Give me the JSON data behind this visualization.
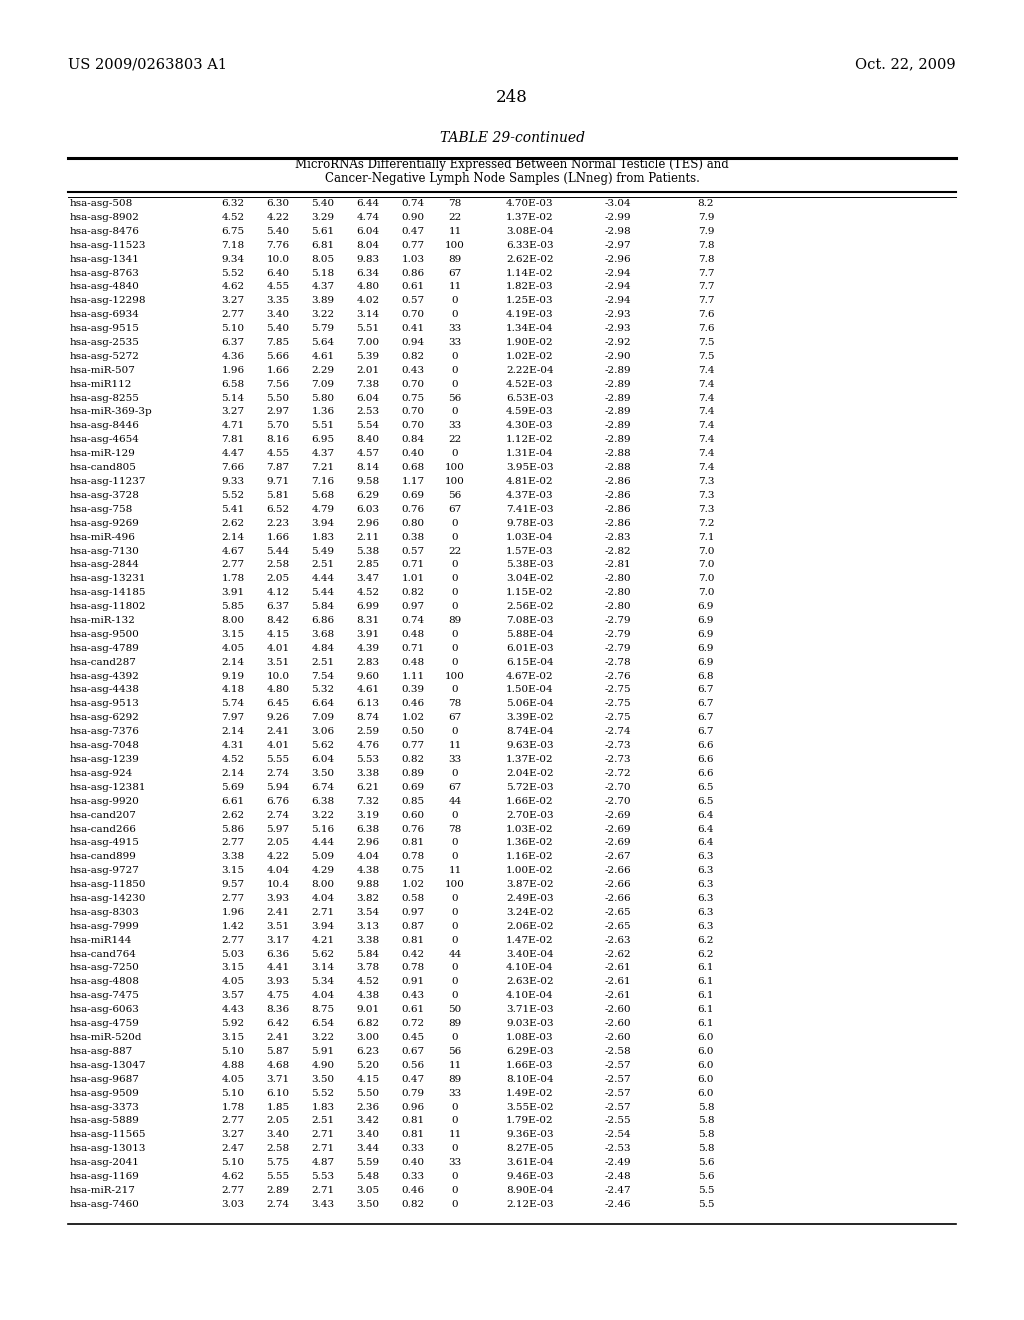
{
  "header_left": "US 2009/0263803 A1",
  "header_right": "Oct. 22, 2009",
  "page_number": "248",
  "table_title": "TABLE 29-continued",
  "table_subtitle1": "MicroRNAs Differentially Expressed Between Normal Testicle (TES) and",
  "table_subtitle2": "Cancer-Negative Lymph Node Samples (LNneg) from Patients.",
  "rows": [
    [
      "hsa-asg-508",
      "6.32",
      "6.30",
      "5.40",
      "6.44",
      "0.74",
      "78",
      "4.70E-03",
      "-3.04",
      "8.2"
    ],
    [
      "hsa-asg-8902",
      "4.52",
      "4.22",
      "3.29",
      "4.74",
      "0.90",
      "22",
      "1.37E-02",
      "-2.99",
      "7.9"
    ],
    [
      "hsa-asg-8476",
      "6.75",
      "5.40",
      "5.61",
      "6.04",
      "0.47",
      "11",
      "3.08E-04",
      "-2.98",
      "7.9"
    ],
    [
      "hsa-asg-11523",
      "7.18",
      "7.76",
      "6.81",
      "8.04",
      "0.77",
      "100",
      "6.33E-03",
      "-2.97",
      "7.8"
    ],
    [
      "hsa-asg-1341",
      "9.34",
      "10.0",
      "8.05",
      "9.83",
      "1.03",
      "89",
      "2.62E-02",
      "-2.96",
      "7.8"
    ],
    [
      "hsa-asg-8763",
      "5.52",
      "6.40",
      "5.18",
      "6.34",
      "0.86",
      "67",
      "1.14E-02",
      "-2.94",
      "7.7"
    ],
    [
      "hsa-asg-4840",
      "4.62",
      "4.55",
      "4.37",
      "4.80",
      "0.61",
      "11",
      "1.82E-03",
      "-2.94",
      "7.7"
    ],
    [
      "hsa-asg-12298",
      "3.27",
      "3.35",
      "3.89",
      "4.02",
      "0.57",
      "0",
      "1.25E-03",
      "-2.94",
      "7.7"
    ],
    [
      "hsa-asg-6934",
      "2.77",
      "3.40",
      "3.22",
      "3.14",
      "0.70",
      "0",
      "4.19E-03",
      "-2.93",
      "7.6"
    ],
    [
      "hsa-asg-9515",
      "5.10",
      "5.40",
      "5.79",
      "5.51",
      "0.41",
      "33",
      "1.34E-04",
      "-2.93",
      "7.6"
    ],
    [
      "hsa-asg-2535",
      "6.37",
      "7.85",
      "5.64",
      "7.00",
      "0.94",
      "33",
      "1.90E-02",
      "-2.92",
      "7.5"
    ],
    [
      "hsa-asg-5272",
      "4.36",
      "5.66",
      "4.61",
      "5.39",
      "0.82",
      "0",
      "1.02E-02",
      "-2.90",
      "7.5"
    ],
    [
      "hsa-miR-507",
      "1.96",
      "1.66",
      "2.29",
      "2.01",
      "0.43",
      "0",
      "2.22E-04",
      "-2.89",
      "7.4"
    ],
    [
      "hsa-miR112",
      "6.58",
      "7.56",
      "7.09",
      "7.38",
      "0.70",
      "0",
      "4.52E-03",
      "-2.89",
      "7.4"
    ],
    [
      "hsa-asg-8255",
      "5.14",
      "5.50",
      "5.80",
      "6.04",
      "0.75",
      "56",
      "6.53E-03",
      "-2.89",
      "7.4"
    ],
    [
      "hsa-miR-369-3p",
      "3.27",
      "2.97",
      "1.36",
      "2.53",
      "0.70",
      "0",
      "4.59E-03",
      "-2.89",
      "7.4"
    ],
    [
      "hsa-asg-8446",
      "4.71",
      "5.70",
      "5.51",
      "5.54",
      "0.70",
      "33",
      "4.30E-03",
      "-2.89",
      "7.4"
    ],
    [
      "hsa-asg-4654",
      "7.81",
      "8.16",
      "6.95",
      "8.40",
      "0.84",
      "22",
      "1.12E-02",
      "-2.89",
      "7.4"
    ],
    [
      "hsa-miR-129",
      "4.47",
      "4.55",
      "4.37",
      "4.57",
      "0.40",
      "0",
      "1.31E-04",
      "-2.88",
      "7.4"
    ],
    [
      "hsa-cand805",
      "7.66",
      "7.87",
      "7.21",
      "8.14",
      "0.68",
      "100",
      "3.95E-03",
      "-2.88",
      "7.4"
    ],
    [
      "hsa-asg-11237",
      "9.33",
      "9.71",
      "7.16",
      "9.58",
      "1.17",
      "100",
      "4.81E-02",
      "-2.86",
      "7.3"
    ],
    [
      "hsa-asg-3728",
      "5.52",
      "5.81",
      "5.68",
      "6.29",
      "0.69",
      "56",
      "4.37E-03",
      "-2.86",
      "7.3"
    ],
    [
      "hsa-asg-758",
      "5.41",
      "6.52",
      "4.79",
      "6.03",
      "0.76",
      "67",
      "7.41E-03",
      "-2.86",
      "7.3"
    ],
    [
      "hsa-asg-9269",
      "2.62",
      "2.23",
      "3.94",
      "2.96",
      "0.80",
      "0",
      "9.78E-03",
      "-2.86",
      "7.2"
    ],
    [
      "hsa-miR-496",
      "2.14",
      "1.66",
      "1.83",
      "2.11",
      "0.38",
      "0",
      "1.03E-04",
      "-2.83",
      "7.1"
    ],
    [
      "hsa-asg-7130",
      "4.67",
      "5.44",
      "5.49",
      "5.38",
      "0.57",
      "22",
      "1.57E-03",
      "-2.82",
      "7.0"
    ],
    [
      "hsa-asg-2844",
      "2.77",
      "2.58",
      "2.51",
      "2.85",
      "0.71",
      "0",
      "5.38E-03",
      "-2.81",
      "7.0"
    ],
    [
      "hsa-asg-13231",
      "1.78",
      "2.05",
      "4.44",
      "3.47",
      "1.01",
      "0",
      "3.04E-02",
      "-2.80",
      "7.0"
    ],
    [
      "hsa-asg-14185",
      "3.91",
      "4.12",
      "5.44",
      "4.52",
      "0.82",
      "0",
      "1.15E-02",
      "-2.80",
      "7.0"
    ],
    [
      "hsa-asg-11802",
      "5.85",
      "6.37",
      "5.84",
      "6.99",
      "0.97",
      "0",
      "2.56E-02",
      "-2.80",
      "6.9"
    ],
    [
      "hsa-miR-132",
      "8.00",
      "8.42",
      "6.86",
      "8.31",
      "0.74",
      "89",
      "7.08E-03",
      "-2.79",
      "6.9"
    ],
    [
      "hsa-asg-9500",
      "3.15",
      "4.15",
      "3.68",
      "3.91",
      "0.48",
      "0",
      "5.88E-04",
      "-2.79",
      "6.9"
    ],
    [
      "hsa-asg-4789",
      "4.05",
      "4.01",
      "4.84",
      "4.39",
      "0.71",
      "0",
      "6.01E-03",
      "-2.79",
      "6.9"
    ],
    [
      "hsa-cand287",
      "2.14",
      "3.51",
      "2.51",
      "2.83",
      "0.48",
      "0",
      "6.15E-04",
      "-2.78",
      "6.9"
    ],
    [
      "hsa-asg-4392",
      "9.19",
      "10.0",
      "7.54",
      "9.60",
      "1.11",
      "100",
      "4.67E-02",
      "-2.76",
      "6.8"
    ],
    [
      "hsa-asg-4438",
      "4.18",
      "4.80",
      "5.32",
      "4.61",
      "0.39",
      "0",
      "1.50E-04",
      "-2.75",
      "6.7"
    ],
    [
      "hsa-asg-9513",
      "5.74",
      "6.45",
      "6.64",
      "6.13",
      "0.46",
      "78",
      "5.06E-04",
      "-2.75",
      "6.7"
    ],
    [
      "hsa-asg-6292",
      "7.97",
      "9.26",
      "7.09",
      "8.74",
      "1.02",
      "67",
      "3.39E-02",
      "-2.75",
      "6.7"
    ],
    [
      "hsa-asg-7376",
      "2.14",
      "2.41",
      "3.06",
      "2.59",
      "0.50",
      "0",
      "8.74E-04",
      "-2.74",
      "6.7"
    ],
    [
      "hsa-asg-7048",
      "4.31",
      "4.01",
      "5.62",
      "4.76",
      "0.77",
      "11",
      "9.63E-03",
      "-2.73",
      "6.6"
    ],
    [
      "hsa-asg-1239",
      "4.52",
      "5.55",
      "6.04",
      "5.53",
      "0.82",
      "33",
      "1.37E-02",
      "-2.73",
      "6.6"
    ],
    [
      "hsa-asg-924",
      "2.14",
      "2.74",
      "3.50",
      "3.38",
      "0.89",
      "0",
      "2.04E-02",
      "-2.72",
      "6.6"
    ],
    [
      "hsa-asg-12381",
      "5.69",
      "5.94",
      "6.74",
      "6.21",
      "0.69",
      "67",
      "5.72E-03",
      "-2.70",
      "6.5"
    ],
    [
      "hsa-asg-9920",
      "6.61",
      "6.76",
      "6.38",
      "7.32",
      "0.85",
      "44",
      "1.66E-02",
      "-2.70",
      "6.5"
    ],
    [
      "hsa-cand207",
      "2.62",
      "2.74",
      "3.22",
      "3.19",
      "0.60",
      "0",
      "2.70E-03",
      "-2.69",
      "6.4"
    ],
    [
      "hsa-cand266",
      "5.86",
      "5.97",
      "5.16",
      "6.38",
      "0.76",
      "78",
      "1.03E-02",
      "-2.69",
      "6.4"
    ],
    [
      "hsa-asg-4915",
      "2.77",
      "2.05",
      "4.44",
      "2.96",
      "0.81",
      "0",
      "1.36E-02",
      "-2.69",
      "6.4"
    ],
    [
      "hsa-cand899",
      "3.38",
      "4.22",
      "5.09",
      "4.04",
      "0.78",
      "0",
      "1.16E-02",
      "-2.67",
      "6.3"
    ],
    [
      "hsa-asg-9727",
      "3.15",
      "4.04",
      "4.29",
      "4.38",
      "0.75",
      "11",
      "1.00E-02",
      "-2.66",
      "6.3"
    ],
    [
      "hsa-asg-11850",
      "9.57",
      "10.4",
      "8.00",
      "9.88",
      "1.02",
      "100",
      "3.87E-02",
      "-2.66",
      "6.3"
    ],
    [
      "hsa-asg-14230",
      "2.77",
      "3.93",
      "4.04",
      "3.82",
      "0.58",
      "0",
      "2.49E-03",
      "-2.66",
      "6.3"
    ],
    [
      "hsa-asg-8303",
      "1.96",
      "2.41",
      "2.71",
      "3.54",
      "0.97",
      "0",
      "3.24E-02",
      "-2.65",
      "6.3"
    ],
    [
      "hsa-asg-7999",
      "1.42",
      "3.51",
      "3.94",
      "3.13",
      "0.87",
      "0",
      "2.06E-02",
      "-2.65",
      "6.3"
    ],
    [
      "hsa-miR144",
      "2.77",
      "3.17",
      "4.21",
      "3.38",
      "0.81",
      "0",
      "1.47E-02",
      "-2.63",
      "6.2"
    ],
    [
      "hsa-cand764",
      "5.03",
      "6.36",
      "5.62",
      "5.84",
      "0.42",
      "44",
      "3.40E-04",
      "-2.62",
      "6.2"
    ],
    [
      "hsa-asg-7250",
      "3.15",
      "4.41",
      "3.14",
      "3.78",
      "0.78",
      "0",
      "4.10E-04",
      "-2.61",
      "6.1"
    ],
    [
      "hsa-asg-4808",
      "4.05",
      "3.93",
      "5.34",
      "4.52",
      "0.91",
      "0",
      "2.63E-02",
      "-2.61",
      "6.1"
    ],
    [
      "hsa-asg-7475",
      "3.57",
      "4.75",
      "4.04",
      "4.38",
      "0.43",
      "0",
      "4.10E-04",
      "-2.61",
      "6.1"
    ],
    [
      "hsa-asg-6063",
      "4.43",
      "8.36",
      "8.75",
      "9.01",
      "0.61",
      "50",
      "3.71E-03",
      "-2.60",
      "6.1"
    ],
    [
      "hsa-asg-4759",
      "5.92",
      "6.42",
      "6.54",
      "6.82",
      "0.72",
      "89",
      "9.03E-03",
      "-2.60",
      "6.1"
    ],
    [
      "hsa-miR-520d",
      "3.15",
      "2.41",
      "3.22",
      "3.00",
      "0.45",
      "0",
      "1.08E-03",
      "-2.60",
      "6.0"
    ],
    [
      "hsa-asg-887",
      "5.10",
      "5.87",
      "5.91",
      "6.23",
      "0.67",
      "56",
      "6.29E-03",
      "-2.58",
      "6.0"
    ],
    [
      "hsa-asg-13047",
      "4.88",
      "4.68",
      "4.90",
      "5.20",
      "0.56",
      "11",
      "1.66E-03",
      "-2.57",
      "6.0"
    ],
    [
      "hsa-asg-9687",
      "4.05",
      "3.71",
      "3.50",
      "4.15",
      "0.47",
      "89",
      "8.10E-04",
      "-2.57",
      "6.0"
    ],
    [
      "hsa-asg-9509",
      "5.10",
      "6.10",
      "5.52",
      "5.50",
      "0.79",
      "33",
      "1.49E-02",
      "-2.57",
      "6.0"
    ],
    [
      "hsa-asg-3373",
      "1.78",
      "1.85",
      "1.83",
      "2.36",
      "0.96",
      "0",
      "3.55E-02",
      "-2.57",
      "5.8"
    ],
    [
      "hsa-asg-5889",
      "2.77",
      "2.05",
      "2.51",
      "3.42",
      "0.81",
      "0",
      "1.79E-02",
      "-2.55",
      "5.8"
    ],
    [
      "hsa-asg-11565",
      "3.27",
      "3.40",
      "2.71",
      "3.40",
      "0.81",
      "11",
      "9.36E-03",
      "-2.54",
      "5.8"
    ],
    [
      "hsa-asg-13013",
      "2.47",
      "2.58",
      "2.71",
      "3.44",
      "0.33",
      "0",
      "8.27E-05",
      "-2.53",
      "5.8"
    ],
    [
      "hsa-asg-2041",
      "5.10",
      "5.75",
      "4.87",
      "5.59",
      "0.40",
      "33",
      "3.61E-04",
      "-2.49",
      "5.6"
    ],
    [
      "hsa-asg-1169",
      "4.62",
      "5.55",
      "5.53",
      "5.48",
      "0.33",
      "0",
      "9.46E-03",
      "-2.48",
      "5.6"
    ],
    [
      "hsa-miR-217",
      "2.77",
      "2.89",
      "2.71",
      "3.05",
      "0.46",
      "0",
      "8.90E-04",
      "-2.47",
      "5.5"
    ],
    [
      "hsa-asg-7460",
      "3.03",
      "2.74",
      "3.43",
      "3.50",
      "0.82",
      "0",
      "2.12E-03",
      "-2.46",
      "5.5"
    ]
  ]
}
